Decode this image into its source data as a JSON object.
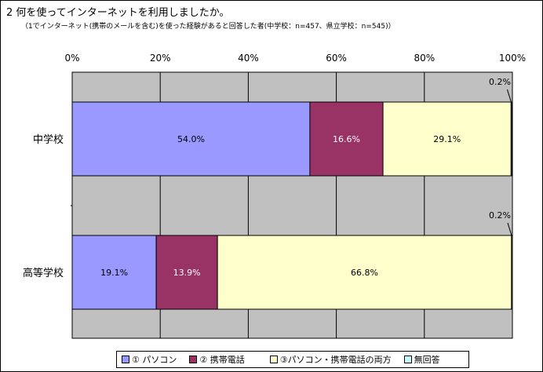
{
  "title": "2 何を使ってインターネットを利用しましたか。",
  "subtitle": "（1でインターネット(携帯のメールを含む)を使った経験があると回答した者(中学校：n=457、県立学校：n=545)）",
  "colors": {
    "pasokon": "#9999ff",
    "keitai": "#993366",
    "ryoho": "#ffffcc",
    "mukaito": "#ccffff",
    "plot_bg": "#c0c0c0"
  },
  "chart_data": {
    "type": "bar",
    "orientation": "horizontal",
    "stacked": "percent",
    "categories": [
      "中学校",
      "高等学校"
    ],
    "series": [
      {
        "name": "① パソコン",
        "values": [
          54.0,
          19.1
        ],
        "labels": [
          "54.0%",
          "19.1%"
        ]
      },
      {
        "name": "② 携帯電話",
        "values": [
          16.6,
          13.9
        ],
        "labels": [
          "16.6%",
          "13.9%"
        ]
      },
      {
        "name": "③パソコン・携帯電話の両方",
        "values": [
          29.1,
          66.8
        ],
        "labels": [
          "29.1%",
          "66.8%"
        ]
      },
      {
        "name": "無回答",
        "values": [
          0.2,
          0.2
        ],
        "labels": [
          "0.2%",
          "0.2%"
        ]
      }
    ],
    "xlim": [
      0,
      100
    ],
    "xticks": [
      "0%",
      "20%",
      "40%",
      "60%",
      "80%",
      "100%"
    ],
    "grid": true,
    "legend_position": "bottom"
  }
}
